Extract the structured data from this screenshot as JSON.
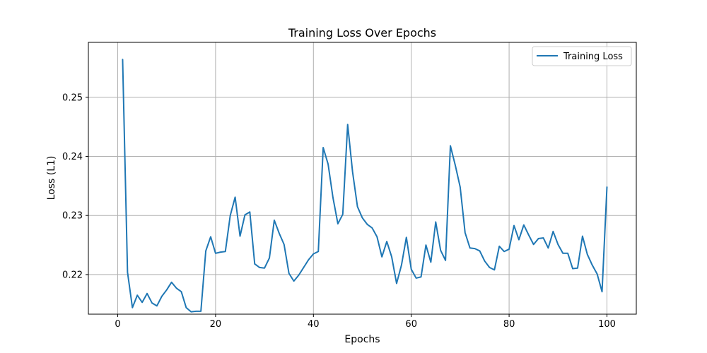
{
  "chart_data": {
    "type": "line",
    "title": "Training Loss Over Epochs",
    "xlabel": "Epochs",
    "ylabel": "Loss (L1)",
    "xlim": [
      -6,
      106
    ],
    "ylim": [
      0.2133,
      0.2593
    ],
    "xticks": [
      0,
      20,
      40,
      60,
      80,
      100
    ],
    "xtick_labels": [
      "0",
      "20",
      "40",
      "60",
      "80",
      "100"
    ],
    "yticks": [
      0.22,
      0.23,
      0.24,
      0.25
    ],
    "ytick_labels": [
      "0.22",
      "0.23",
      "0.24",
      "0.25"
    ],
    "grid": true,
    "legend_position": "top-right",
    "series": [
      {
        "name": "Training Loss",
        "color": "#1f77b4",
        "x": [
          1,
          2,
          3,
          4,
          5,
          6,
          7,
          8,
          9,
          10,
          11,
          12,
          13,
          14,
          15,
          16,
          17,
          18,
          19,
          20,
          21,
          22,
          23,
          24,
          25,
          26,
          27,
          28,
          29,
          30,
          31,
          32,
          33,
          34,
          35,
          36,
          37,
          38,
          39,
          40,
          41,
          42,
          43,
          44,
          45,
          46,
          47,
          48,
          49,
          50,
          51,
          52,
          53,
          54,
          55,
          56,
          57,
          58,
          59,
          60,
          61,
          62,
          63,
          64,
          65,
          66,
          67,
          68,
          69,
          70,
          71,
          72,
          73,
          74,
          75,
          76,
          77,
          78,
          79,
          80,
          81,
          82,
          83,
          84,
          85,
          86,
          87,
          88,
          89,
          90,
          91,
          92,
          93,
          94,
          95,
          96,
          97,
          98,
          99,
          100
        ],
        "values": [
          0.2564,
          0.2204,
          0.2144,
          0.2165,
          0.2153,
          0.2168,
          0.2152,
          0.2147,
          0.2163,
          0.2174,
          0.2187,
          0.2177,
          0.2171,
          0.2144,
          0.2137,
          0.2138,
          0.2138,
          0.224,
          0.2264,
          0.2236,
          0.2238,
          0.2239,
          0.23,
          0.2331,
          0.2265,
          0.2301,
          0.2306,
          0.2218,
          0.2212,
          0.2211,
          0.2228,
          0.2292,
          0.227,
          0.2251,
          0.2202,
          0.2189,
          0.2199,
          0.2212,
          0.2225,
          0.2235,
          0.2239,
          0.2415,
          0.2387,
          0.233,
          0.2286,
          0.2302,
          0.2454,
          0.2374,
          0.2315,
          0.2296,
          0.2285,
          0.2279,
          0.2264,
          0.223,
          0.2256,
          0.223,
          0.2185,
          0.2216,
          0.2263,
          0.2209,
          0.2194,
          0.2196,
          0.225,
          0.2221,
          0.2289,
          0.2241,
          0.2224,
          0.2418,
          0.2385,
          0.2348,
          0.2271,
          0.2245,
          0.2244,
          0.224,
          0.2223,
          0.2212,
          0.2208,
          0.2248,
          0.2239,
          0.2243,
          0.2283,
          0.2259,
          0.2284,
          0.2267,
          0.2251,
          0.2261,
          0.2262,
          0.2245,
          0.2273,
          0.2251,
          0.2236,
          0.2236,
          0.221,
          0.2211,
          0.2265,
          0.2234,
          0.2216,
          0.2201,
          0.2171,
          0.2348
        ]
      }
    ]
  }
}
